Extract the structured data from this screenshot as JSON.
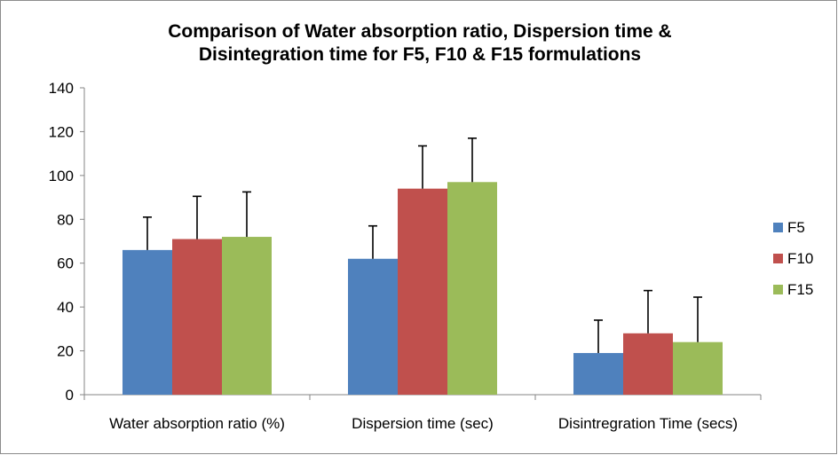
{
  "chart_data": {
    "type": "bar",
    "title_lines": [
      "Comparison of Water absorption ratio, Dispersion time &",
      "Disintegration time for F5, F10 & F15 formulations"
    ],
    "xlabel": "",
    "ylabel": "",
    "ylim": [
      0,
      140
    ],
    "yticks": [
      0,
      20,
      40,
      60,
      80,
      100,
      120,
      140
    ],
    "grid": false,
    "legend_position": "right",
    "categories": [
      "Water absorption ratio (%)",
      "Dispersion time (sec)",
      "Disintregration Time (secs)"
    ],
    "series": [
      {
        "name": "F5",
        "color": "#4f81bd",
        "values": [
          66,
          62,
          19
        ],
        "errors": [
          15,
          15,
          15
        ]
      },
      {
        "name": "F10",
        "color": "#c0504d",
        "values": [
          71,
          94,
          28
        ],
        "errors": [
          19.5,
          19.5,
          19.5
        ]
      },
      {
        "name": "F15",
        "color": "#9bbb59",
        "values": [
          72,
          97,
          24
        ],
        "errors": [
          20.5,
          20,
          20.5
        ]
      }
    ],
    "error_bar_color": "#000000",
    "axis_color": "#868686"
  }
}
